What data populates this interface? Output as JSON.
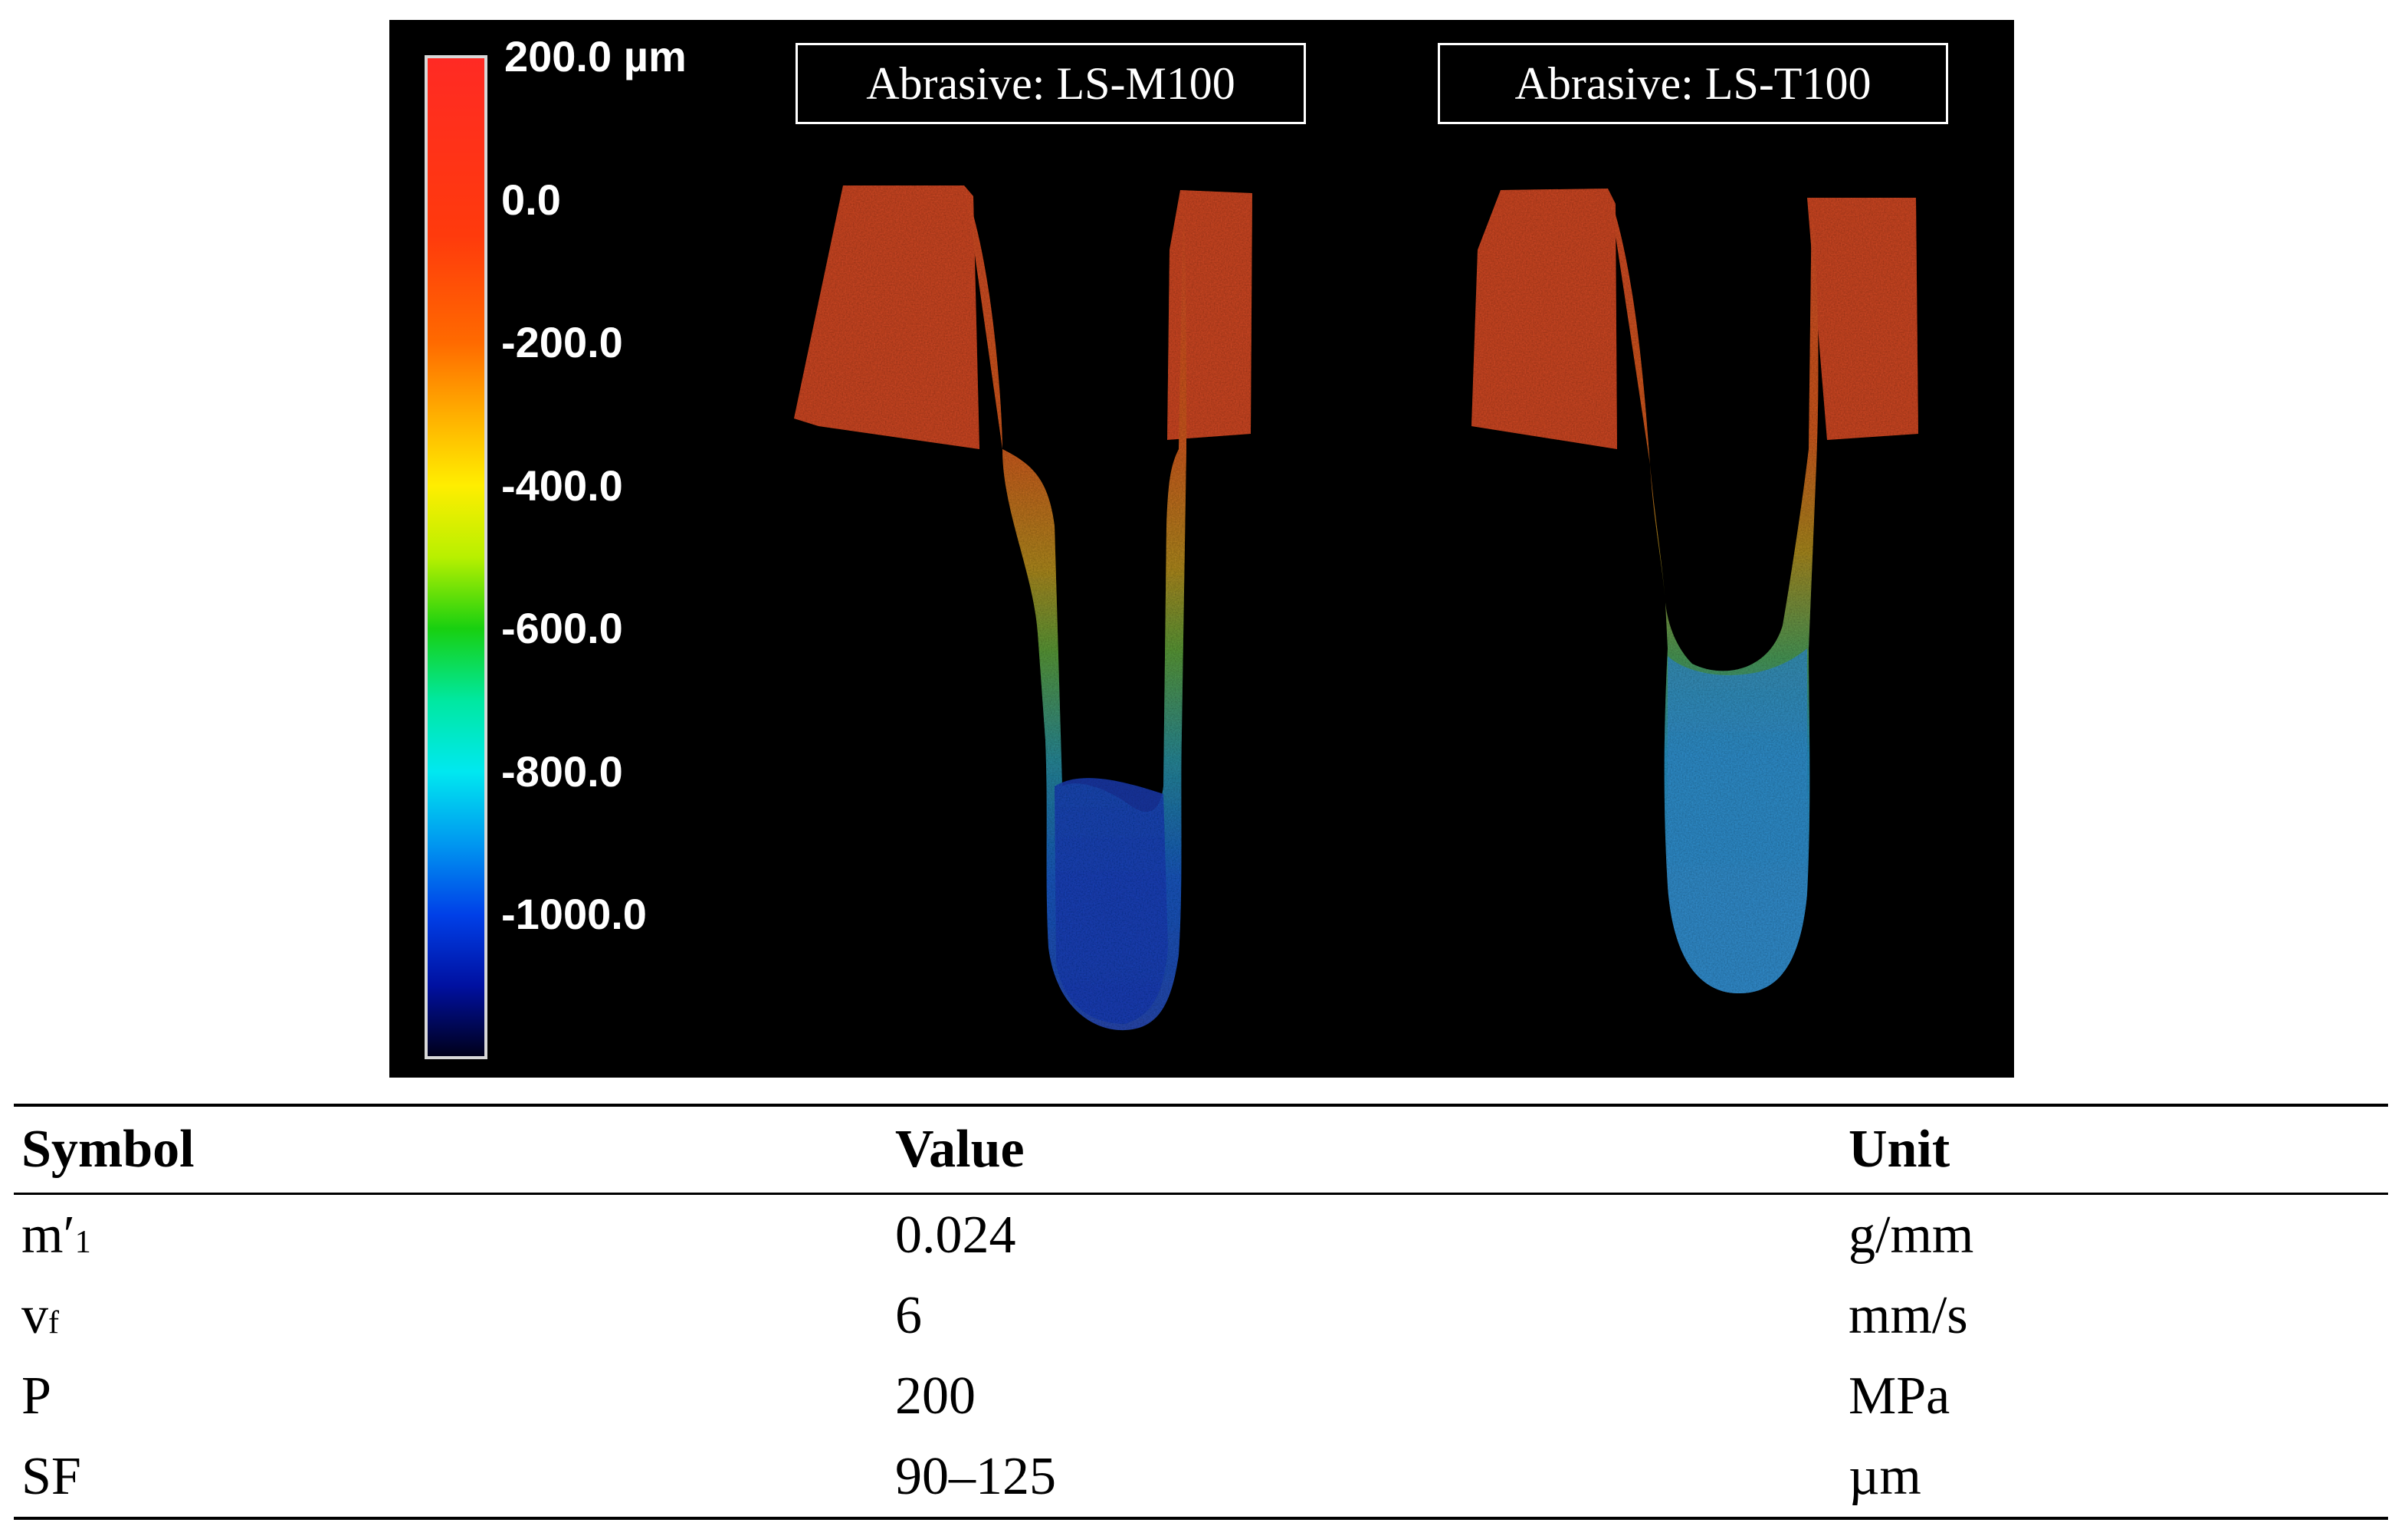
{
  "figure": {
    "color_scale": {
      "unit": "µm",
      "labels": [
        "200.0 µm",
        "0.0",
        "-200.0",
        "-400.0",
        "-600.0",
        "-800.0",
        "-1000.0"
      ],
      "values": [
        200,
        0,
        -200,
        -400,
        -600,
        -800,
        -1000
      ],
      "range": [
        -1200,
        200
      ],
      "stops": [
        {
          "value": 200,
          "color": "#ff2a24"
        },
        {
          "value": -50,
          "color": "#ff3a0c"
        },
        {
          "value": -200,
          "color": "#ff6a00"
        },
        {
          "value": -300,
          "color": "#ffae00"
        },
        {
          "value": -400,
          "color": "#ffee00"
        },
        {
          "value": -500,
          "color": "#b8f000"
        },
        {
          "value": -600,
          "color": "#18d010"
        },
        {
          "value": -700,
          "color": "#00e8a0"
        },
        {
          "value": -800,
          "color": "#00e8f0"
        },
        {
          "value": -900,
          "color": "#0098f0"
        },
        {
          "value": -1000,
          "color": "#0040e8"
        },
        {
          "value": -1100,
          "color": "#0010a0"
        },
        {
          "value": -1200,
          "color": "#000018"
        }
      ]
    },
    "samples": [
      {
        "label": "Abrasive: LS-M100",
        "min_depth": -1000
      },
      {
        "label": "Abrasive: LS-T100",
        "min_depth": -800
      }
    ],
    "colors": {
      "surface": "#cf4a26",
      "background": "#000000"
    }
  },
  "table": {
    "headers": [
      "Symbol",
      "Value",
      "Unit"
    ],
    "rows": [
      {
        "symbol": "m′",
        "symbol_sub": "1",
        "value": "0.024",
        "unit": "g/mm"
      },
      {
        "symbol": "v",
        "symbol_sub": "f",
        "value": "6",
        "unit": "mm/s"
      },
      {
        "symbol": "P",
        "symbol_sub": "",
        "value": "200",
        "unit": "MPa"
      },
      {
        "symbol": "SF",
        "symbol_sub": "",
        "value": "90–125",
        "unit": "µm"
      }
    ]
  }
}
